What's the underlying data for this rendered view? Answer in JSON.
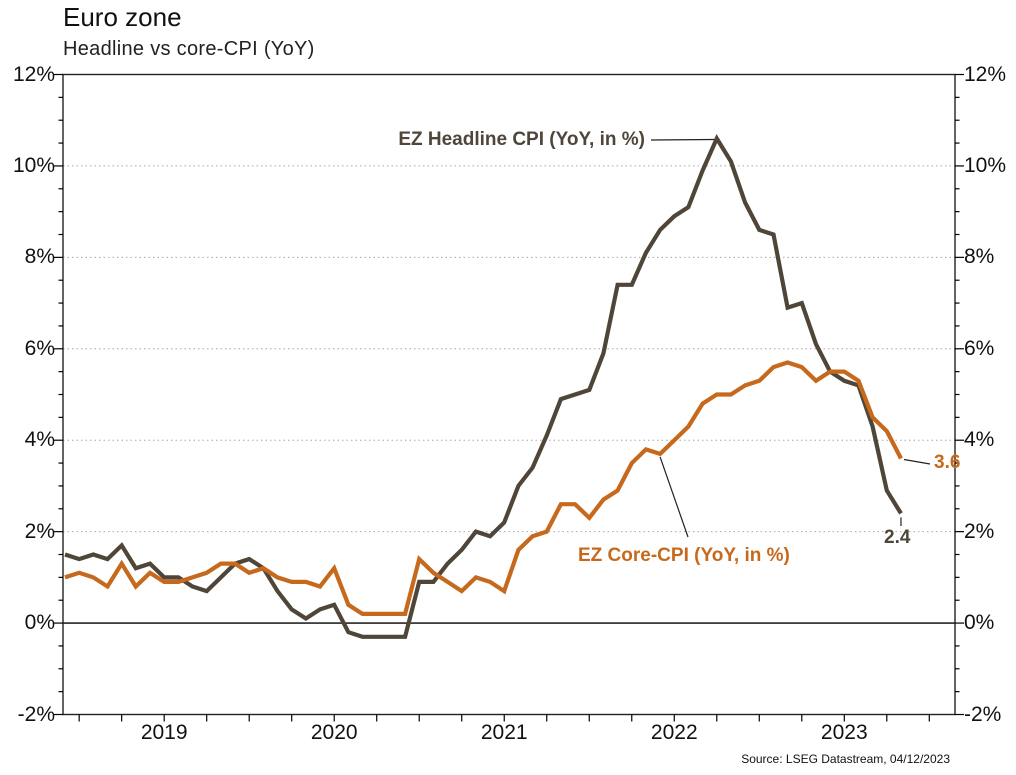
{
  "header": {
    "title": "Euro zone",
    "subtitle": "Headline vs core-CPI (YoY)"
  },
  "source": "Source: LSEG Datastream, 04/12/2023",
  "chart_data": {
    "type": "line",
    "title": "Euro zone",
    "subtitle": "Headline vs core-CPI (YoY)",
    "x_start": "2018-12",
    "x_end": "2023-11",
    "x_frequency": "monthly",
    "x_axis_extends_to": "2024-02",
    "year_labels": [
      "2019",
      "2020",
      "2021",
      "2022",
      "2023"
    ],
    "ylim": [
      -2,
      12
    ],
    "y_tick_step_major": 2,
    "y_tick_step_minor": 0.5,
    "y_tick_labels": [
      "12%",
      "10%",
      "8%",
      "6%",
      "4%",
      "2%",
      "0%",
      "-2%"
    ],
    "y_tick_values": [
      12,
      10,
      8,
      6,
      4,
      2,
      0,
      -2
    ],
    "grid": "dotted horizontal lines at 2% steps, solid line at 0%",
    "legend_position": "inline annotations",
    "series": [
      {
        "name": "EZ Headline CPI (YoY, in %)",
        "color": "#4f4639",
        "last_value_label": "2.4",
        "values": [
          1.5,
          1.4,
          1.5,
          1.4,
          1.7,
          1.2,
          1.3,
          1.0,
          1.0,
          0.8,
          0.7,
          1.0,
          1.3,
          1.4,
          1.2,
          0.7,
          0.3,
          0.1,
          0.3,
          0.4,
          -0.2,
          -0.3,
          -0.3,
          -0.3,
          -0.3,
          0.9,
          0.9,
          1.3,
          1.6,
          2.0,
          1.9,
          2.2,
          3.0,
          3.4,
          4.1,
          4.9,
          5.0,
          5.1,
          5.9,
          7.4,
          7.4,
          8.1,
          8.6,
          8.9,
          9.1,
          9.9,
          10.6,
          10.1,
          9.2,
          8.6,
          8.5,
          6.9,
          7.0,
          6.1,
          5.5,
          5.3,
          5.2,
          4.3,
          2.9,
          2.4
        ]
      },
      {
        "name": "EZ Core-CPI (YoY, in %)",
        "color": "#c7691c",
        "last_value_label": "3.6",
        "values": [
          1.0,
          1.1,
          1.0,
          0.8,
          1.3,
          0.8,
          1.1,
          0.9,
          0.9,
          1.0,
          1.1,
          1.3,
          1.3,
          1.1,
          1.2,
          1.0,
          0.9,
          0.9,
          0.8,
          1.2,
          0.4,
          0.2,
          0.2,
          0.2,
          0.2,
          1.4,
          1.1,
          0.9,
          0.7,
          1.0,
          0.9,
          0.7,
          1.6,
          1.9,
          2.0,
          2.6,
          2.6,
          2.3,
          2.7,
          2.9,
          3.5,
          3.8,
          3.7,
          4.0,
          4.3,
          4.8,
          5.0,
          5.0,
          5.2,
          5.3,
          5.6,
          5.7,
          5.6,
          5.3,
          5.5,
          5.5,
          5.3,
          4.5,
          4.2,
          3.6
        ]
      }
    ]
  }
}
